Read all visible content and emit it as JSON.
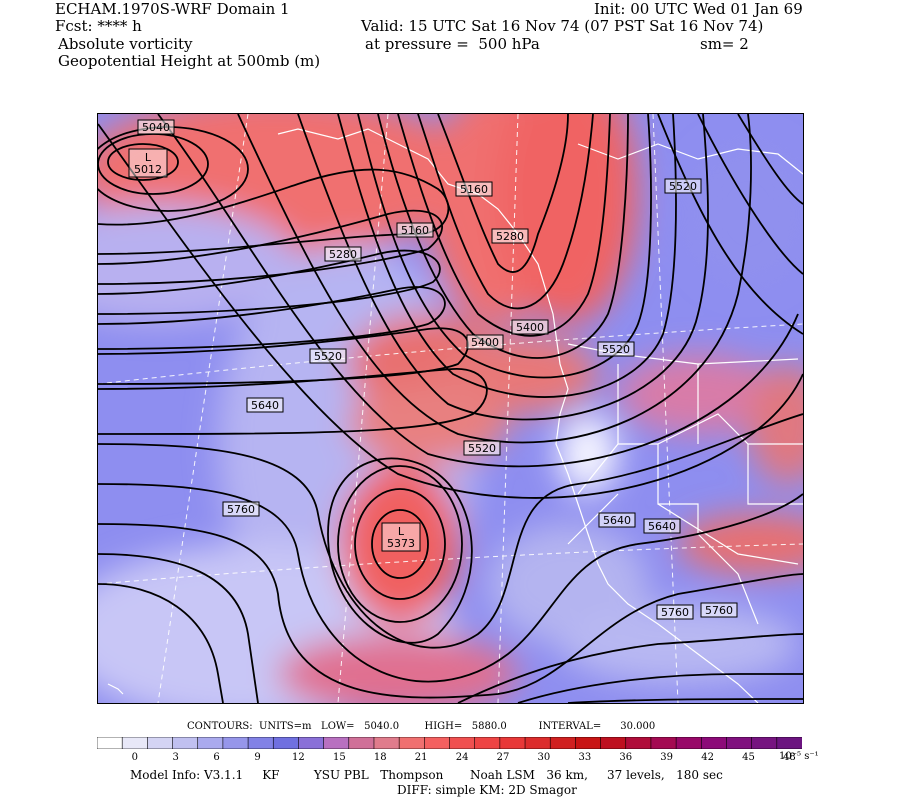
{
  "header": {
    "line1_left": "ECHAM.1970S-WRF Domain 1",
    "line2_left": "Fcst: **** h",
    "line3_left": "Absolute vorticity",
    "line4_left": "Geopotential Height at 500mb (m)",
    "init": "Init: 00 UTC Wed 01 Jan 69",
    "valid": "Valid: 15 UTC Sat 16 Nov 74 (07 PST Sat 16 Nov 74)",
    "pressure": "at pressure =  500 hPa",
    "sm": "sm= 2"
  },
  "map": {
    "lows": [
      {
        "marker": "L",
        "value": "5012"
      },
      {
        "marker": "L",
        "value": "5373"
      }
    ],
    "contour_labels": [
      "5040",
      "5160",
      "5160",
      "5280",
      "5280",
      "5400",
      "5400",
      "5520",
      "5520",
      "5520",
      "5520",
      "5640",
      "5640",
      "5640",
      "5760",
      "5760",
      "5760"
    ]
  },
  "footer": {
    "contours": "CONTOURS:  UNITS=m   LOW=   5040.0        HIGH=   5880.0          INTERVAL=      30.000",
    "model_info": "Model Info: V3.1.1     KF         YSU PBL   Thompson       Noah LSM   36 km,     37 levels,   180 sec",
    "diff": "DIFF: simple KM: 2D Smagor"
  },
  "colorbar": {
    "ticks": [
      "0",
      "3",
      "6",
      "9",
      "12",
      "15",
      "18",
      "21",
      "24",
      "27",
      "30",
      "33",
      "36",
      "39",
      "42",
      "45",
      "48"
    ],
    "units": "10⁻⁵ s⁻¹",
    "colors": [
      "#ffffff",
      "#e8e8f8",
      "#d4d4f4",
      "#c0c0f0",
      "#aaaaee",
      "#9696ea",
      "#8282e6",
      "#7070e0",
      "#8a70d8",
      "#b870c0",
      "#d07098",
      "#e07c8c",
      "#f07070",
      "#f46060",
      "#f05050",
      "#ee4444",
      "#e83838",
      "#dc2c2c",
      "#d02020",
      "#c81414",
      "#be1020",
      "#b00c3a",
      "#a40a52",
      "#980868",
      "#8c0a78",
      "#80107e",
      "#761480",
      "#6c1480"
    ]
  }
}
